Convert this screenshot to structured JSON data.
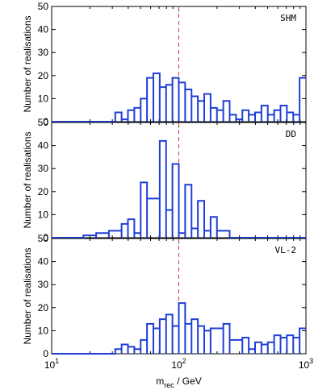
{
  "chart_data": {
    "type": "histogram",
    "xlabel": "m_rec / GeV",
    "xlabel_main": "m",
    "xlabel_sub": "rec",
    "xlabel_tail": " / GeV",
    "xscale": "log",
    "xlim": [
      10,
      1000
    ],
    "x_ticks": [
      {
        "base": "10",
        "exp": "1",
        "value": 10
      },
      {
        "base": "10",
        "exp": "2",
        "value": 100
      },
      {
        "base": "10",
        "exp": "3",
        "value": 1000
      }
    ],
    "reference_line": {
      "x": 100,
      "style": "dashed",
      "color": "#e03030"
    },
    "series_color": "#1f3fd6",
    "bin_edges_log10": [
      1.5,
      1.55,
      1.6,
      1.65,
      1.7,
      1.75,
      1.8,
      1.85,
      1.9,
      1.95,
      2.0,
      2.05,
      2.1,
      2.15,
      2.2,
      2.25,
      2.3,
      2.35,
      2.4,
      2.45,
      2.5,
      2.55,
      2.6,
      2.65,
      2.7,
      2.75,
      2.8,
      2.85,
      2.9,
      2.95,
      3.0
    ],
    "panels": [
      {
        "label": "SHM",
        "ylabel": "Number of realisations",
        "ylim": [
          0,
          50
        ],
        "y_ticks": [
          "10",
          "20",
          "30",
          "40",
          "50"
        ],
        "counts": [
          4,
          1,
          5,
          6,
          10,
          19,
          21,
          15,
          16,
          19,
          17,
          14,
          11,
          9,
          12,
          6,
          5,
          9,
          3,
          1,
          5,
          3,
          4,
          7,
          3,
          5,
          7,
          4,
          3,
          19
        ]
      },
      {
        "label": "DD",
        "ylabel": "Number of realisations",
        "ylim": [
          0,
          50
        ],
        "y_ticks": [
          "10",
          "20",
          "30",
          "40",
          "50"
        ],
        "counts": [
          3,
          6,
          8,
          2,
          24,
          17,
          17,
          42,
          12,
          32,
          2,
          23,
          4,
          16,
          3,
          9,
          6,
          3,
          0,
          0,
          0,
          0,
          0,
          0,
          0,
          0,
          0,
          0,
          0,
          0
        ],
        "extra_bins": [
          {
            "lo": 1.25,
            "hi": 1.35,
            "count": 1
          },
          {
            "lo": 1.35,
            "hi": 1.45,
            "count": 2
          },
          {
            "lo": 1.45,
            "hi": 1.5,
            "count": 3
          },
          {
            "lo": 2.3,
            "hi": 2.35,
            "count": 3
          }
        ]
      },
      {
        "label": "VL-2",
        "ylabel": "Number of realisations",
        "ylim": [
          0,
          50
        ],
        "y_ticks": [
          "10",
          "20",
          "30",
          "40",
          "50"
        ],
        "counts": [
          2,
          4,
          3,
          2,
          6,
          13,
          11,
          15,
          17,
          12,
          22,
          13,
          15,
          12,
          10,
          11,
          11,
          13,
          6,
          6,
          7,
          2,
          5,
          4,
          5,
          8,
          7,
          8,
          7,
          10
        ],
        "extra_bins": [
          {
            "lo": 2.95,
            "hi": 3.0,
            "count": 11
          }
        ]
      }
    ]
  }
}
